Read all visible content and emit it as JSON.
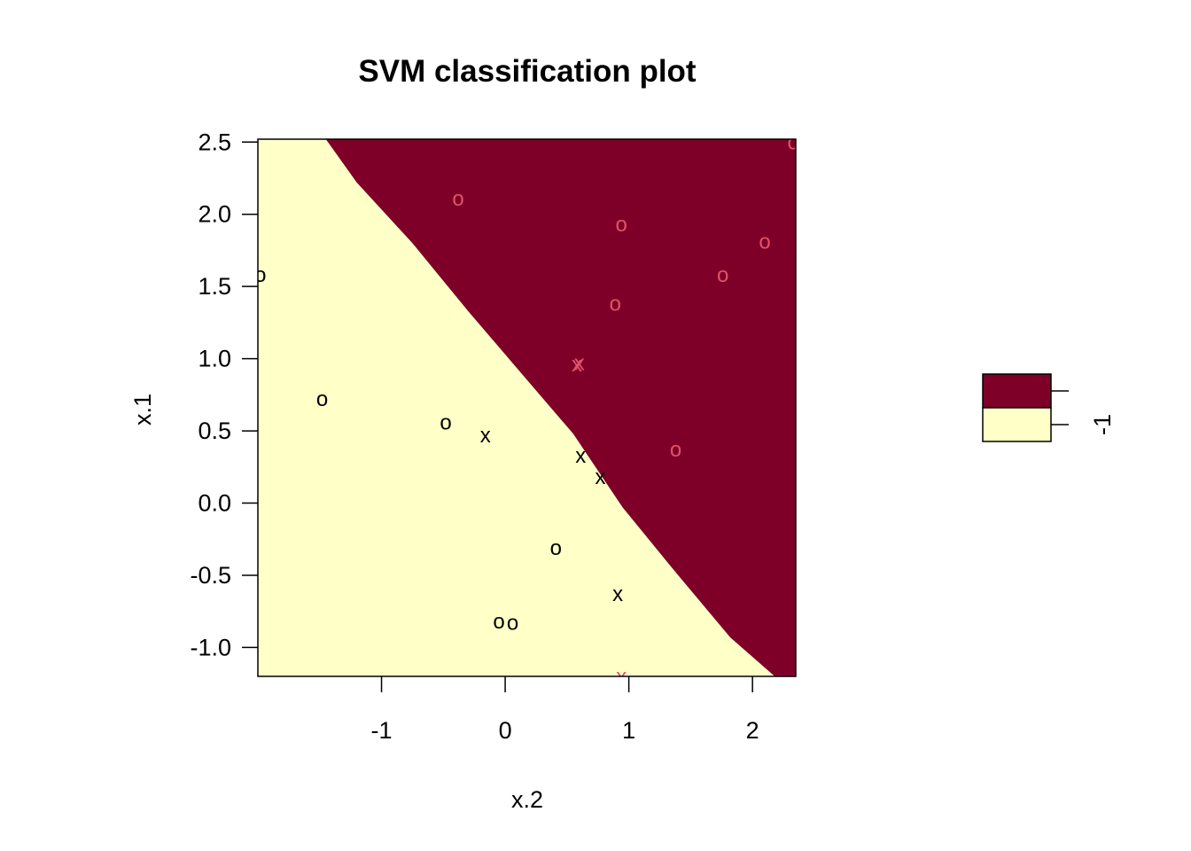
{
  "chart_data": {
    "type": "scatter",
    "title": "SVM classification plot",
    "xlabel": "x.2",
    "ylabel": "x.1",
    "xlim": [
      -2.0,
      2.35
    ],
    "ylim": [
      -1.2,
      2.52
    ],
    "x_ticks": [
      {
        "value": -1,
        "label": "-1"
      },
      {
        "value": 0,
        "label": "0"
      },
      {
        "value": 1,
        "label": "1"
      },
      {
        "value": 2,
        "label": "2"
      }
    ],
    "y_ticks": [
      {
        "value": 2.5,
        "label": "2.5"
      },
      {
        "value": 2.0,
        "label": "2.0"
      },
      {
        "value": 1.5,
        "label": "1.5"
      },
      {
        "value": 1.0,
        "label": "1.0"
      },
      {
        "value": 0.5,
        "label": "0.5"
      },
      {
        "value": 0.0,
        "label": "0.0"
      },
      {
        "value": -0.5,
        "label": "-0.5"
      },
      {
        "value": -1.0,
        "label": "-1.0"
      }
    ],
    "region_colors": {
      "upper": "#7E0028",
      "lower": "#FFFFC8"
    },
    "decision_boundary": [
      [
        -1.45,
        2.52
      ],
      [
        -1.2,
        2.22
      ],
      [
        -0.75,
        1.8
      ],
      [
        -0.3,
        1.33
      ],
      [
        0.15,
        0.88
      ],
      [
        0.55,
        0.48
      ],
      [
        0.95,
        -0.03
      ],
      [
        1.35,
        -0.45
      ],
      [
        1.82,
        -0.93
      ],
      [
        2.18,
        -1.2
      ]
    ],
    "series": [
      {
        "class_color": "#000000",
        "points": [
          {
            "x": -1.98,
            "y": 1.58,
            "marker": "o"
          },
          {
            "x": -1.48,
            "y": 0.72,
            "marker": "o"
          },
          {
            "x": -0.48,
            "y": 0.56,
            "marker": "o"
          },
          {
            "x": -0.16,
            "y": 0.47,
            "marker": "x"
          },
          {
            "x": 0.61,
            "y": 0.33,
            "marker": "x"
          },
          {
            "x": 0.77,
            "y": 0.18,
            "marker": "x"
          },
          {
            "x": 0.41,
            "y": -0.31,
            "marker": "o"
          },
          {
            "x": 0.91,
            "y": -0.63,
            "marker": "x"
          },
          {
            "x": -0.05,
            "y": -0.82,
            "marker": "o"
          },
          {
            "x": 0.06,
            "y": -0.83,
            "marker": "o"
          }
        ]
      },
      {
        "class_color": "#DF536B",
        "points": [
          {
            "x": -0.38,
            "y": 2.11,
            "marker": "o"
          },
          {
            "x": 0.94,
            "y": 1.93,
            "marker": "o"
          },
          {
            "x": 2.1,
            "y": 1.81,
            "marker": "o"
          },
          {
            "x": 1.76,
            "y": 1.58,
            "marker": "o"
          },
          {
            "x": 0.89,
            "y": 1.38,
            "marker": "o"
          },
          {
            "x": 0.58,
            "y": 0.96,
            "marker": "x"
          },
          {
            "x": 0.6,
            "y": 0.97,
            "marker": "x"
          },
          {
            "x": 1.38,
            "y": 0.37,
            "marker": "o"
          },
          {
            "x": 2.33,
            "y": 2.5,
            "marker": "o"
          },
          {
            "x": 0.94,
            "y": -1.2,
            "marker": "x"
          }
        ]
      }
    ],
    "legend": {
      "position": "right",
      "entries": [
        {
          "color": "#7E0028",
          "label": ""
        },
        {
          "color": "#FFFFC8",
          "label": "-1"
        }
      ]
    }
  }
}
